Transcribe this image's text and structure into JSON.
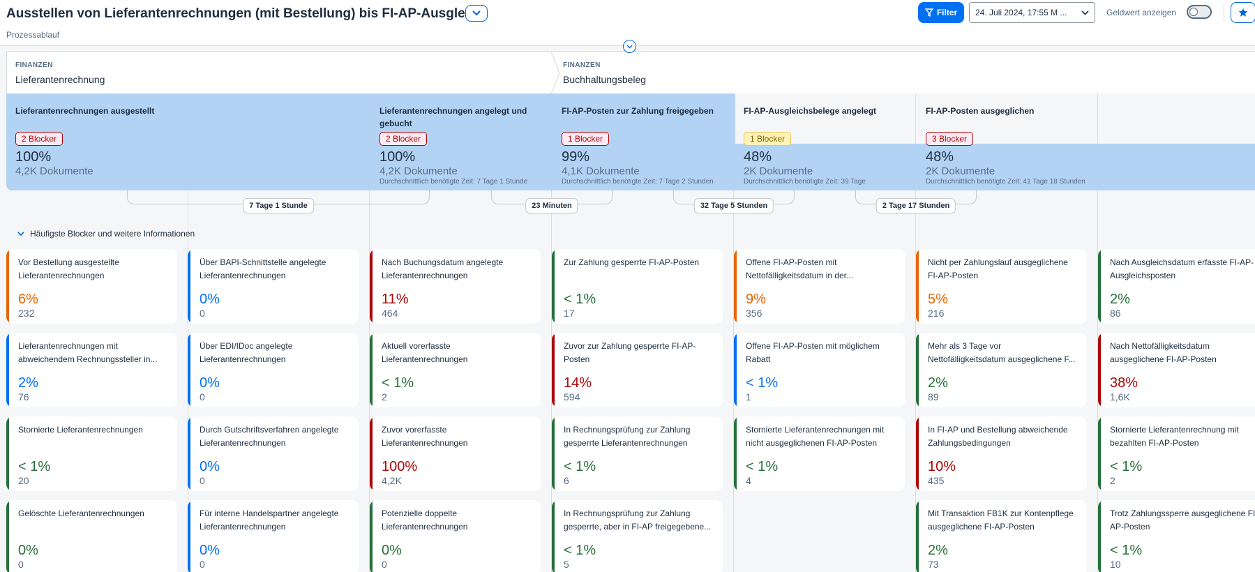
{
  "header": {
    "title": "Ausstellen von Lieferantenrechnungen (mit Bestellung) bis FI-AP-Ausgleich",
    "subtitle": "Prozessablauf",
    "filter_label": "Filter",
    "date_value": "24. Juli 2024, 17:55 M ...",
    "geldwert_label": "Geldwert anzeigen"
  },
  "phases": [
    {
      "category": "FINANZEN",
      "name": "Lieferantenrechnung"
    },
    {
      "category": "FINANZEN",
      "name": "Buchhaltungsbeleg"
    }
  ],
  "steps": [
    {
      "title": "Lieferantenrechnungen ausgestellt",
      "blocker": "2 Blocker",
      "blocker_type": "red",
      "percent": "100%",
      "docs": "4,2K Dokumente",
      "avg": ""
    },
    {
      "title": "Lieferantenrechnungen angelegt und gebucht",
      "blocker": "2 Blocker",
      "blocker_type": "red",
      "percent": "100%",
      "docs": "4,2K Dokumente",
      "avg": "Durchschnittlich benötigte Zeit: 7 Tage 1 Stunde"
    },
    {
      "title": "FI-AP-Posten zur Zahlung freigegeben",
      "blocker": "1 Blocker",
      "blocker_type": "red",
      "percent": "99%",
      "docs": "4,1K Dokumente",
      "avg": "Durchschnittlich benötigte Zeit: 7 Tage 2 Stunden"
    },
    {
      "title": "FI-AP-Ausgleichsbelege angelegt",
      "blocker": "1 Blocker",
      "blocker_type": "yel",
      "percent": "48%",
      "docs": "2K Dokumente",
      "avg": "Durchschnittlich benötigte Zeit: 39 Tage"
    },
    {
      "title": "FI-AP-Posten ausgeglichen",
      "blocker": "3 Blocker",
      "blocker_type": "red",
      "percent": "48%",
      "docs": "2K Dokumente",
      "avg": "Durchschnittlich benötigte Zeit: 41 Tage 18 Stunden"
    }
  ],
  "durations": [
    "7 Tage 1 Stunde",
    "23 Minuten",
    "32 Tage 5 Stunden",
    "2 Tage 17 Stunden"
  ],
  "info_toggle": "Häufigste Blocker und weitere Informationen",
  "columns": [
    [
      {
        "title": "Vor Bestellung ausgestellte Lieferantenrechnungen",
        "percent": "6%",
        "count": "232",
        "status": "orange"
      },
      {
        "title": "Lieferantenrechnungen mit abweichendem Rechnungssteller in...",
        "percent": "2%",
        "count": "76",
        "status": "blue"
      },
      {
        "title": "Stornierte Lieferantenrechnungen",
        "percent": "< 1%",
        "count": "20",
        "status": "green"
      },
      {
        "title": "Gelöschte Lieferantenrechnungen",
        "percent": "0%",
        "count": "0",
        "status": "green"
      }
    ],
    [
      {
        "title": "Über BAPI-Schnittstelle angelegte Lieferantenrechnungen",
        "percent": "0%",
        "count": "0",
        "status": "blue"
      },
      {
        "title": "Über EDI/IDoc angelegte Lieferantenrechnungen",
        "percent": "0%",
        "count": "0",
        "status": "blue"
      },
      {
        "title": "Durch Gutschriftsverfahren angelegte Lieferantenrechnungen",
        "percent": "0%",
        "count": "0",
        "status": "blue"
      },
      {
        "title": "Für interne Handelspartner angelegte Lieferantenrechnungen",
        "percent": "0%",
        "count": "0",
        "status": "blue"
      }
    ],
    [
      {
        "title": "Nach Buchungsdatum angelegte Lieferantenrechnungen",
        "percent": "11%",
        "count": "464",
        "status": "red"
      },
      {
        "title": "Aktuell vorerfasste Lieferantenrechnungen",
        "percent": "< 1%",
        "count": "2",
        "status": "green"
      },
      {
        "title": "Zuvor vorerfasste Lieferantenrechnungen",
        "percent": "100%",
        "count": "4,2K",
        "status": "red"
      },
      {
        "title": "Potenzielle doppelte Lieferantenrechnungen",
        "percent": "0%",
        "count": "0",
        "status": "green"
      }
    ],
    [
      {
        "title": "Zur Zahlung gesperrte FI-AP-Posten",
        "percent": "< 1%",
        "count": "17",
        "status": "green"
      },
      {
        "title": "Zuvor zur Zahlung gesperrte FI-AP-Posten",
        "percent": "14%",
        "count": "594",
        "status": "red"
      },
      {
        "title": "In Rechnungsprüfung zur Zahlung gesperrte Lieferantenrechnungen",
        "percent": "< 1%",
        "count": "6",
        "status": "green"
      },
      {
        "title": "In Rechnungsprüfung zur Zahlung gesperrte, aber in FI-AP freigegebene...",
        "percent": "< 1%",
        "count": "5",
        "status": "green"
      }
    ],
    [
      {
        "title": "Offene FI-AP-Posten mit Nettofälligkeitsdatum in der...",
        "percent": "9%",
        "count": "356",
        "status": "orange"
      },
      {
        "title": "Offene FI-AP-Posten mit möglichem Rabatt",
        "percent": "< 1%",
        "count": "1",
        "status": "blue"
      },
      {
        "title": "Stornierte Lieferantenrechnungen mit nicht ausgeglichenen FI-AP-Posten",
        "percent": "< 1%",
        "count": "4",
        "status": "green"
      }
    ],
    [
      {
        "title": "Nicht per Zahlungslauf ausgeglichene FI-AP-Posten",
        "percent": "5%",
        "count": "216",
        "status": "orange"
      },
      {
        "title": "Mehr als 3 Tage vor Nettofälligkeitsdatum ausgeglichene F...",
        "percent": "2%",
        "count": "89",
        "status": "green"
      },
      {
        "title": "In FI-AP und Bestellung abweichende Zahlungsbedingungen",
        "percent": "10%",
        "count": "435",
        "status": "red"
      },
      {
        "title": "Mit Transaktion FB1K zur Kontenpflege ausgeglichene FI-AP-Posten",
        "percent": "2%",
        "count": "73",
        "status": "green"
      }
    ],
    [
      {
        "title": "Nach Ausgleichsdatum erfasste FI-AP-Ausgleichsposten",
        "percent": "2%",
        "count": "86",
        "status": "green"
      },
      {
        "title": "Nach Nettofälligkeitsdatum ausgeglichene FI-AP-Posten",
        "percent": "38%",
        "count": "1,6K",
        "status": "red"
      },
      {
        "title": "Stornierte Lieferantenrechnung mit bezahlten FI-AP-Posten",
        "percent": "< 1%",
        "count": "2",
        "status": "green"
      },
      {
        "title": "Trotz Zahlungssperre ausgeglichene FI-AP-Posten",
        "percent": "< 1%",
        "count": "10",
        "status": "green"
      }
    ]
  ]
}
